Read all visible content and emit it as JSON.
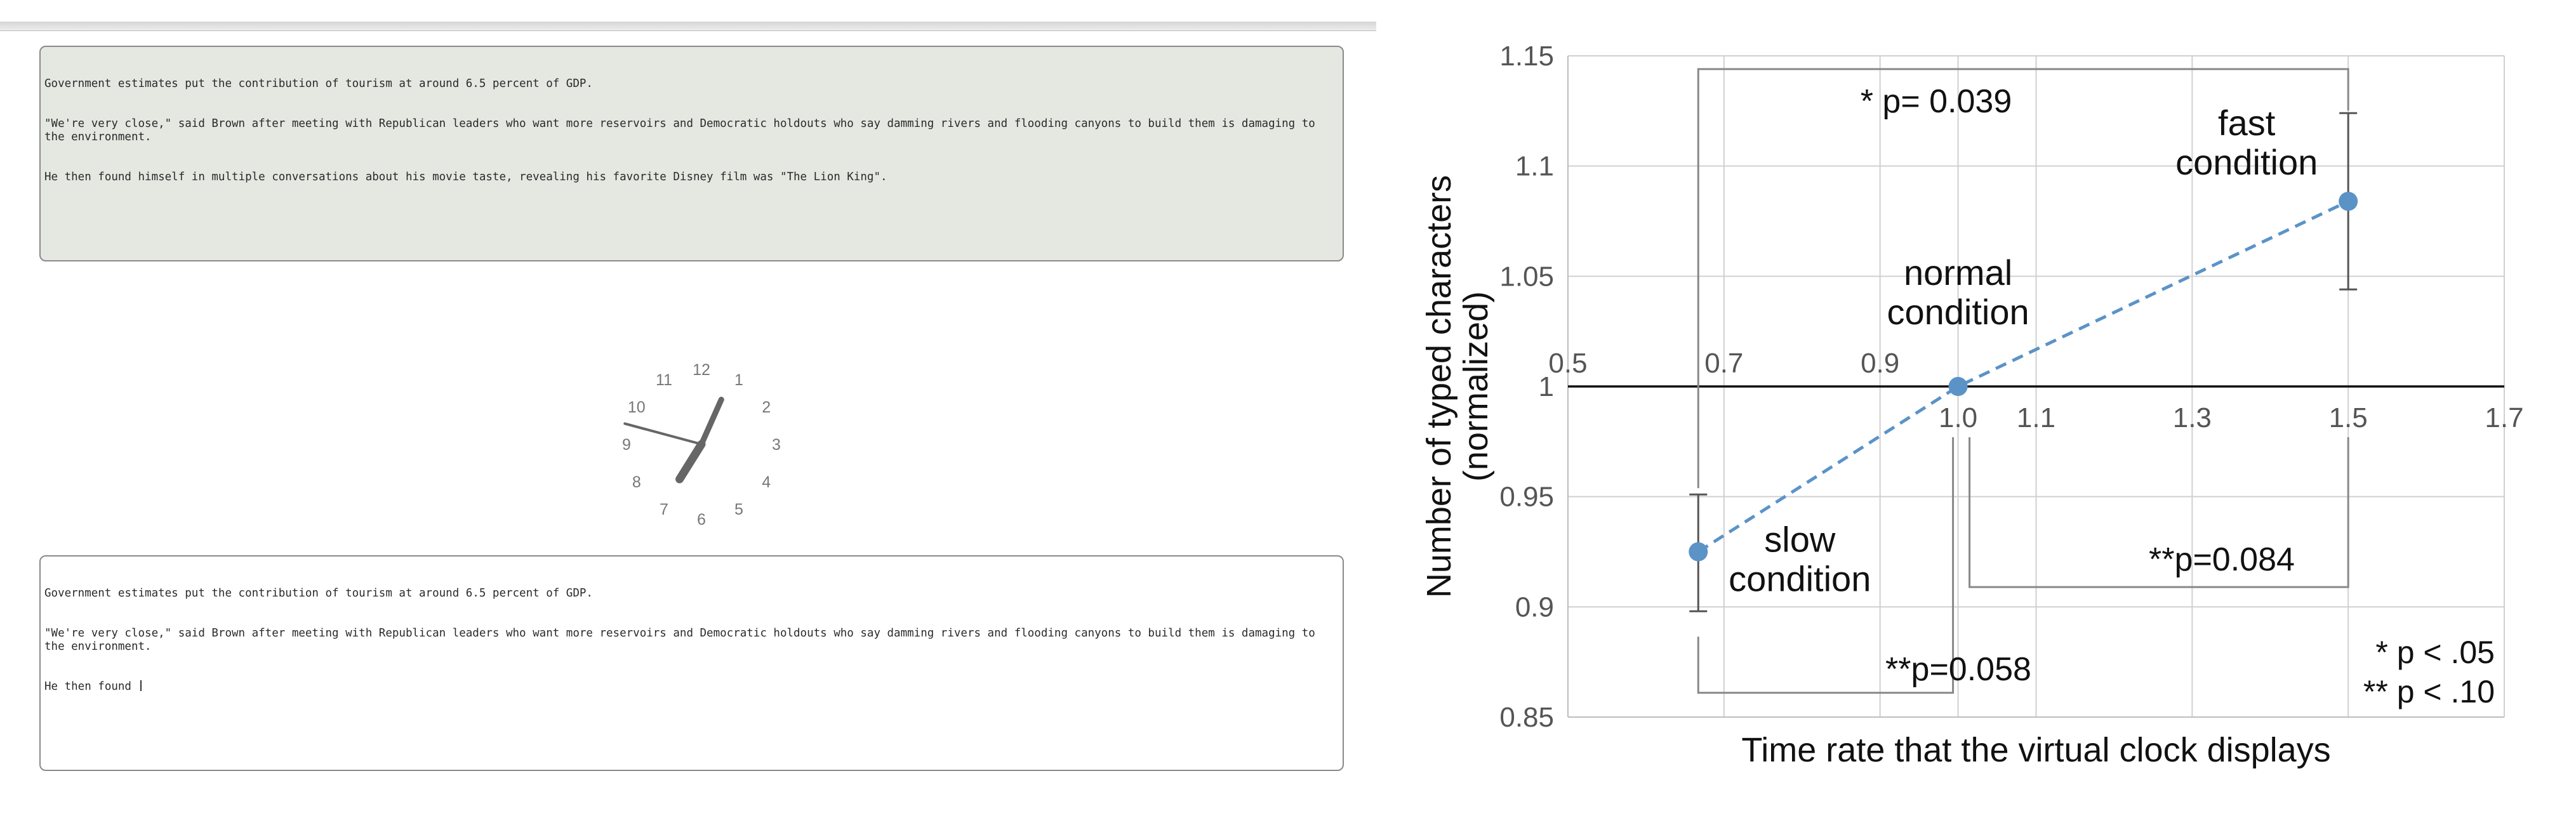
{
  "reference_text": {
    "lines": [
      "Government estimates put the contribution of tourism at around 6.5 percent of GDP.",
      "\"We're very close,\" said Brown after meeting with Republican leaders who want more reservoirs and Democratic holdouts who say damming rivers and flooding canyons to build them is damaging to the environment.",
      "He then found himself in multiple conversations about his movie taste, revealing his favorite Disney film was \"The Lion King\"."
    ]
  },
  "typing_text": {
    "lines": [
      "Government estimates put the contribution of tourism at around 6.5 percent of GDP.",
      "\"We're very close,\" said Brown after meeting with Republican leaders who want more reservoirs and Democratic holdouts who say damming rivers and flooding canyons to build them is damaging to the environment.",
      "He then found "
    ]
  },
  "clock": {
    "numbers": [
      "12",
      "1",
      "2",
      "3",
      "4",
      "5",
      "6",
      "7",
      "8",
      "9",
      "10",
      "11"
    ],
    "hour": 7,
    "minute": 4,
    "second": 47.5,
    "color": "#666666"
  },
  "chart_data": {
    "type": "scatter",
    "xlabel": "Time rate that the virtual clock displays",
    "ylabel_lines": [
      "Number of typed characters",
      "(normalized)"
    ],
    "xlim": [
      0.5,
      1.7
    ],
    "ylim": [
      0.85,
      1.15
    ],
    "xticks": [
      "0.5",
      "0.7",
      "0.9",
      "1.0",
      "1.1",
      "1.3",
      "1.5",
      "1.7"
    ],
    "yticks": [
      "0.85",
      "0.9",
      "0.95",
      "1",
      "1.05",
      "1.1",
      "1.15"
    ],
    "grid": true,
    "series_color": "#5b93c7",
    "points": [
      {
        "x": 0.667,
        "y": 0.925,
        "err_low": 0.898,
        "err_high": 0.951,
        "label_lines": [
          "slow",
          "condition"
        ]
      },
      {
        "x": 1.0,
        "y": 1.0,
        "label_lines": [
          "normal",
          "condition"
        ]
      },
      {
        "x": 1.5,
        "y": 1.084,
        "err_low": 1.044,
        "err_high": 1.124,
        "label_lines": [
          "fast",
          "condition"
        ]
      }
    ],
    "comparisons": [
      {
        "from_x": 0.667,
        "to_x": 1.5,
        "label": "* p= 0.039"
      },
      {
        "from_x": 1.0,
        "to_x": 1.5,
        "label": "**p=0.084"
      },
      {
        "from_x": 0.667,
        "to_x": 1.0,
        "label": "**p=0.058"
      }
    ],
    "legend": [
      "* p < .05",
      "** p < .10"
    ]
  }
}
